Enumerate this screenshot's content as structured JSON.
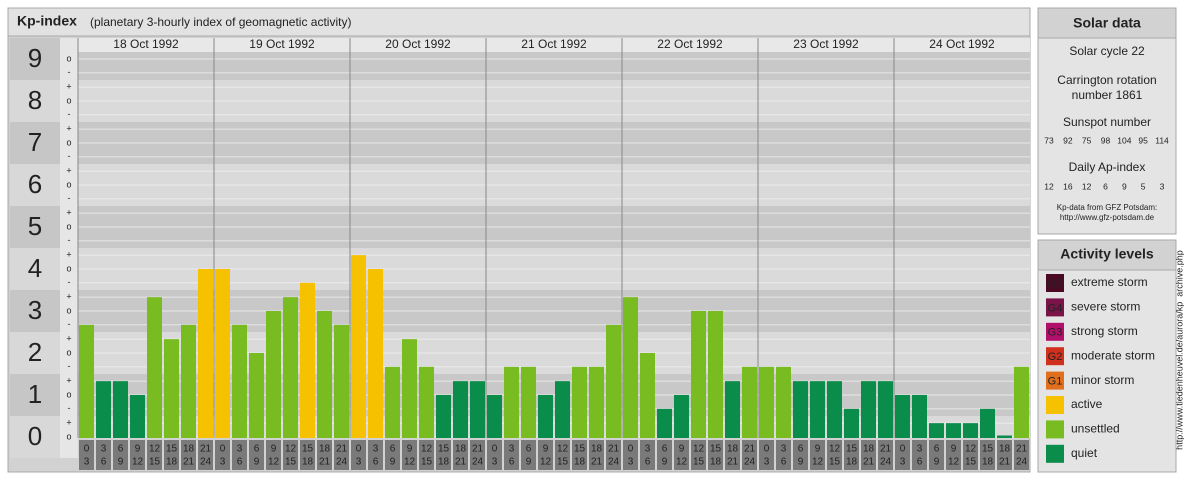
{
  "chart_data": {
    "type": "bar",
    "title": "Kp-index",
    "subtitle": "(planetary 3-hourly index of geomagnetic activity)",
    "days": [
      "18 Oct 1992",
      "19 Oct 1992",
      "20 Oct 1992",
      "21 Oct 1992",
      "22 Oct 1992",
      "23 Oct 1992",
      "24 Oct 1992"
    ],
    "hour_starts": [
      0,
      3,
      6,
      9,
      12,
      15,
      18,
      21
    ],
    "hour_ends": [
      3,
      6,
      9,
      12,
      15,
      18,
      21,
      24
    ],
    "values": [
      2.67,
      1.33,
      1.33,
      1.0,
      3.33,
      2.33,
      2.67,
      4.0,
      4.0,
      2.67,
      2.0,
      3.0,
      3.33,
      3.67,
      3.0,
      2.67,
      4.33,
      4.0,
      1.67,
      2.33,
      1.67,
      1.0,
      1.33,
      1.33,
      1.0,
      1.67,
      1.67,
      1.0,
      1.33,
      1.67,
      1.67,
      2.67,
      3.33,
      2.0,
      0.67,
      1.0,
      3.0,
      3.0,
      1.33,
      1.67,
      1.67,
      1.67,
      1.33,
      1.33,
      1.33,
      0.67,
      1.33,
      1.33,
      1.0,
      1.0,
      0.33,
      0.33,
      0.33,
      0.67,
      0,
      1.67
    ],
    "colors": [
      "#79bc22",
      "#0a8c4a",
      "#0a8c4a",
      "#0a8c4a",
      "#79bc22",
      "#79bc22",
      "#79bc22",
      "#f6c200",
      "#f6c200",
      "#79bc22",
      "#79bc22",
      "#79bc22",
      "#79bc22",
      "#f6c200",
      "#79bc22",
      "#79bc22",
      "#f6c200",
      "#f6c200",
      "#79bc22",
      "#79bc22",
      "#79bc22",
      "#0a8c4a",
      "#0a8c4a",
      "#0a8c4a",
      "#0a8c4a",
      "#79bc22",
      "#79bc22",
      "#0a8c4a",
      "#0a8c4a",
      "#79bc22",
      "#79bc22",
      "#79bc22",
      "#79bc22",
      "#79bc22",
      "#0a8c4a",
      "#0a8c4a",
      "#79bc22",
      "#79bc22",
      "#0a8c4a",
      "#79bc22",
      "#79bc22",
      "#79bc22",
      "#0a8c4a",
      "#0a8c4a",
      "#0a8c4a",
      "#0a8c4a",
      "#0a8c4a",
      "#0a8c4a",
      "#0a8c4a",
      "#0a8c4a",
      "#0a8c4a",
      "#0a8c4a",
      "#0a8c4a",
      "#0a8c4a",
      "#0a8c4a",
      "#79bc22"
    ],
    "ylim": [
      0,
      9
    ],
    "yticks": [
      0,
      1,
      2,
      3,
      4,
      5,
      6,
      7,
      8,
      9
    ],
    "minor_ticks": [
      {
        "value": 9,
        "label": "o"
      },
      {
        "value": 8.67,
        "label": "-"
      },
      {
        "value": 8.33,
        "label": "+"
      },
      {
        "value": 8,
        "label": "o"
      },
      {
        "value": 7.67,
        "label": "-"
      },
      {
        "value": 7.33,
        "label": "+"
      },
      {
        "value": 7,
        "label": "o"
      },
      {
        "value": 6.67,
        "label": "-"
      },
      {
        "value": 6.33,
        "label": "+"
      },
      {
        "value": 6,
        "label": "o"
      },
      {
        "value": 5.67,
        "label": "-"
      },
      {
        "value": 5.33,
        "label": "+"
      },
      {
        "value": 5,
        "label": "o"
      },
      {
        "value": 4.67,
        "label": "-"
      },
      {
        "value": 4.33,
        "label": "+"
      },
      {
        "value": 4,
        "label": "o"
      },
      {
        "value": 3.67,
        "label": "-"
      },
      {
        "value": 3.33,
        "label": "+"
      },
      {
        "value": 3,
        "label": "o"
      },
      {
        "value": 2.67,
        "label": "-"
      },
      {
        "value": 2.33,
        "label": "+"
      },
      {
        "value": 2,
        "label": "o"
      },
      {
        "value": 1.67,
        "label": "-"
      },
      {
        "value": 1.33,
        "label": "+"
      },
      {
        "value": 1,
        "label": "o"
      },
      {
        "value": 0.67,
        "label": "-"
      },
      {
        "value": 0.33,
        "label": "+"
      },
      {
        "value": 0,
        "label": "o"
      }
    ],
    "legend_title": "Activity levels",
    "legend": [
      {
        "code": "G5",
        "name": "extreme storm",
        "color": "#4a0a24"
      },
      {
        "code": "G4",
        "name": "severe storm",
        "color": "#7a1448"
      },
      {
        "code": "G3",
        "name": "strong storm",
        "color": "#b0106a"
      },
      {
        "code": "G2",
        "name": "moderate storm",
        "color": "#d2301e"
      },
      {
        "code": "G1",
        "name": "minor storm",
        "color": "#e0701e"
      },
      {
        "name": "active",
        "color": "#f6c200"
      },
      {
        "name": "unsettled",
        "color": "#79bc22"
      },
      {
        "name": "quiet",
        "color": "#0a8c4a"
      }
    ]
  },
  "solar_data": {
    "title": "Solar data",
    "cycle": "Solar cycle 22",
    "carrington": [
      "Carrington rotation",
      "number 1861"
    ],
    "sunspot_title": "Sunspot number",
    "sunspot_numbers": [
      73,
      92,
      75,
      98,
      104,
      95,
      114
    ],
    "ap_title": "Daily Ap-index",
    "ap_values": [
      12,
      16,
      12,
      6,
      9,
      5,
      3
    ],
    "source": "Kp-data from GFZ Potsdam:",
    "source_url": "http://www.gfz-potsdam.de"
  },
  "watermark": "http://www.tiedenheuvel.de/aurora/kp_archive.php"
}
